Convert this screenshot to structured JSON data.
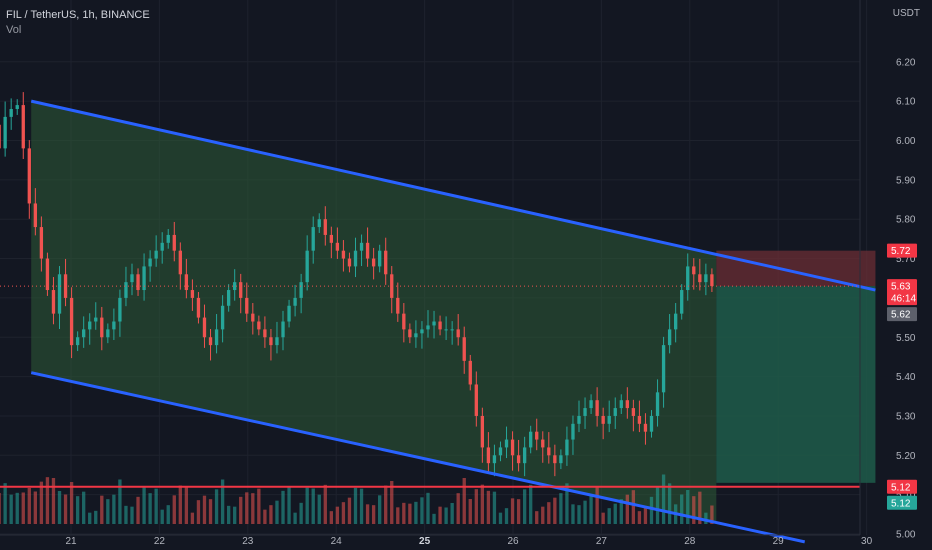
{
  "header": {
    "symbol_line": "FIL / TetherUS, 1h, BINANCE",
    "volume_label": "Vol"
  },
  "currency": "USDT",
  "colors": {
    "background": "#131722",
    "up": "#26a69a",
    "down": "#ef5350",
    "channel_line": "#2962ff",
    "channel_fill": "#2e5b36",
    "support_line": "#f23645",
    "profit_zone": "#1e5c4a",
    "loss_zone": "#6b2d34"
  },
  "price_tags": {
    "target": "5.72",
    "last_price": "5.63",
    "countdown": "46:14",
    "prev_close": "5.62",
    "support_1": "5.12",
    "support_2": "5.12"
  },
  "chart_data": {
    "type": "candlestick",
    "title": "FIL / TetherUS, 1h, BINANCE",
    "y_axis": {
      "unit": "USDT",
      "ticks": [
        "6.20",
        "6.10",
        "6.00",
        "5.90",
        "5.80",
        "5.70",
        "5.60",
        "5.50",
        "5.40",
        "5.30",
        "5.20",
        "5.10",
        "5.00"
      ],
      "range": [
        4.99,
        6.25
      ]
    },
    "x_axis": {
      "ticks": [
        "21",
        "22",
        "23",
        "24",
        "25",
        "26",
        "27",
        "28",
        "29",
        "30"
      ],
      "bold_tick": "25",
      "range_days": [
        20.2,
        30.3
      ]
    },
    "close_series": [
      6.12,
      6.04,
      5.98,
      6.06,
      6.08,
      6.09,
      5.98,
      5.84,
      5.78,
      5.7,
      5.62,
      5.56,
      5.66,
      5.6,
      5.48,
      5.5,
      5.52,
      5.54,
      5.55,
      5.5,
      5.52,
      5.54,
      5.6,
      5.64,
      5.66,
      5.62,
      5.68,
      5.7,
      5.72,
      5.74,
      5.76,
      5.72,
      5.66,
      5.62,
      5.6,
      5.55,
      5.5,
      5.48,
      5.52,
      5.58,
      5.62,
      5.64,
      5.6,
      5.56,
      5.54,
      5.52,
      5.5,
      5.48,
      5.5,
      5.54,
      5.58,
      5.6,
      5.64,
      5.72,
      5.78,
      5.8,
      5.76,
      5.74,
      5.72,
      5.7,
      5.68,
      5.72,
      5.74,
      5.7,
      5.68,
      5.72,
      5.66,
      5.6,
      5.56,
      5.52,
      5.5,
      5.51,
      5.52,
      5.53,
      5.54,
      5.52,
      5.52,
      5.52,
      5.5,
      5.44,
      5.38,
      5.3,
      5.22,
      5.18,
      5.2,
      5.22,
      5.24,
      5.2,
      5.18,
      5.22,
      5.26,
      5.24,
      5.22,
      5.2,
      5.18,
      5.2,
      5.24,
      5.28,
      5.3,
      5.32,
      5.34,
      5.3,
      5.28,
      5.3,
      5.32,
      5.34,
      5.32,
      5.3,
      5.28,
      5.26,
      5.3,
      5.36,
      5.48,
      5.52,
      5.56,
      5.62,
      5.68,
      5.66,
      5.64,
      5.66,
      5.63
    ],
    "channel": {
      "upper": [
        [
          20.55,
          6.1
        ],
        [
          30.1,
          5.62
        ]
      ],
      "lower": [
        [
          20.55,
          5.41
        ],
        [
          29.3,
          4.98
        ]
      ]
    },
    "support_level": 5.12,
    "position": {
      "entry": 5.63,
      "target": 5.72,
      "stop": 5.13,
      "start_day": 28.3,
      "end_day": 30.1
    }
  }
}
